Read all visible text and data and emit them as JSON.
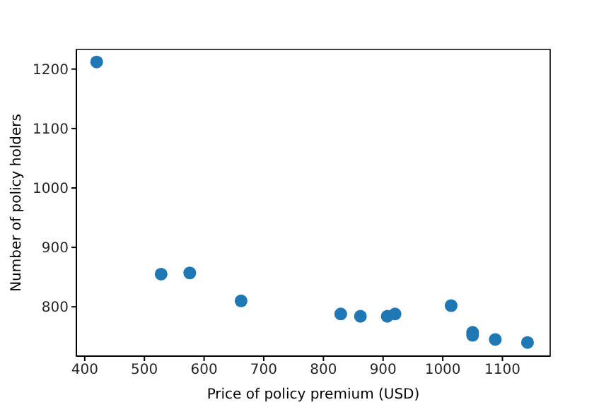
{
  "chart_data": {
    "type": "scatter",
    "xlabel": "Price of policy premium (USD)",
    "ylabel": "Number of policy holders",
    "x": [
      420,
      528,
      576,
      662,
      829,
      862,
      907,
      920,
      1014,
      1050,
      1050,
      1088,
      1142
    ],
    "values": [
      1212,
      855,
      857,
      810,
      788,
      784,
      784,
      788,
      802,
      757,
      752,
      745,
      740
    ],
    "color": "#1f77b4",
    "marker": "circle",
    "grid": false,
    "xlim": [
      386,
      1180
    ],
    "xticks": [
      400,
      500,
      600,
      700,
      800,
      900,
      1000,
      1100
    ],
    "ylim": [
      717,
      1233
    ],
    "yticks": [
      800,
      900,
      1000,
      1100,
      1200
    ]
  }
}
